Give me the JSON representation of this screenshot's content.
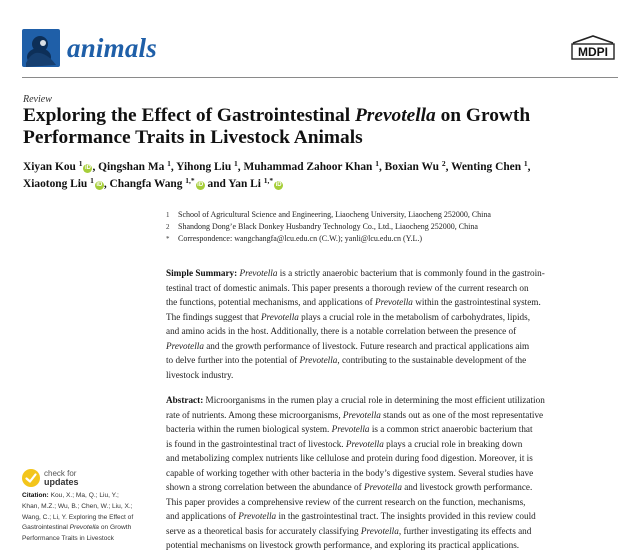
{
  "journal": {
    "name": "animals",
    "publisher": "MDPI",
    "brand_color": "#1f5fa8"
  },
  "article": {
    "type": "Review",
    "title_lines": [
      [
        "Exploring the Effect of Gastrointestinal ",
        "Prevotella",
        " on Growth"
      ],
      [
        "Performance Traits in Livestock Animals"
      ]
    ]
  },
  "authors": {
    "line1": {
      "a1": "Xiyan Kou ",
      "s1": "1",
      "a2": ", Qingshan Ma ",
      "s2": "1",
      "a3": ", Yihong Liu ",
      "s3": "1",
      "a4": ", Muhammad Zahoor Khan ",
      "s4": "1",
      "a5": ", Boxian Wu ",
      "s5": "2",
      "a6": ", Wenting Chen ",
      "s6": "1",
      "a7": ","
    },
    "line2": {
      "a1": "Xiaotong Liu ",
      "s1": "1",
      "a2": ", Changfa Wang ",
      "s2": "1,*",
      "a3": " and Yan Li ",
      "s3": "1,*"
    }
  },
  "affiliations": [
    {
      "mark": "1",
      "text": "School of Agricultural Science and Engineering, Liaocheng University, Liaocheng 252000, China"
    },
    {
      "mark": "2",
      "text": "Shandong Dong’e Black Donkey Husbandry Technology Co., Ltd., Liaocheng 252000, China"
    },
    {
      "mark": "*",
      "text": "Correspondence: wangchangfa@lcu.edu.cn (C.W.); yanli@lcu.edu.cn (Y.L.)"
    }
  ],
  "simple_summary": {
    "label": "Simple Summary:",
    "l1": {
      "a": "Prevotella",
      "b": " is a strictly anaerobic bacterium that is commonly found in the gastroin-"
    },
    "l2": "testinal tract of domestic animals. This paper presents a thorough review of the current research on",
    "l3": {
      "a": "the functions, potential mechanisms, and applications of ",
      "b": "Prevotella",
      "c": " within the gastrointestinal system."
    },
    "l4": {
      "a": "The findings suggest that ",
      "b": "Prevotella",
      "c": " plays a crucial role in the metabolism of carbohydrates, lipids,"
    },
    "l5": "and amino acids in the host.  Additionally, there is a notable correlation between the presence of",
    "l6": {
      "a": "Prevotella",
      "b": " and the growth performance of livestock. Future research and practical applications aim"
    },
    "l7": {
      "a": "to delve further into the potential of ",
      "b": "Prevotella",
      "c": ", contributing to the sustainable development of the"
    },
    "l8": "livestock industry."
  },
  "abstract": {
    "label": "Abstract:",
    "l1": " Microorganisms in the rumen play a crucial role in determining the most efficient utilization",
    "l2": {
      "a": "rate of nutrients.  Among these microorganisms, ",
      "b": "Prevotella",
      "c": " stands out as one of the most representative"
    },
    "l3": {
      "a": "bacteria within the rumen biological system. ",
      "b": "Prevotella",
      "c": " is a common strict anaerobic bacterium that"
    },
    "l4": {
      "a": "is found in the gastrointestinal tract of livestock.  ",
      "b": "Prevotella",
      "c": " plays a crucial role in breaking down"
    },
    "l5": "and metabolizing complex nutrients like cellulose and protein during food digestion. Moreover, it is",
    "l6": "capable of working together with other bacteria in the body’s digestive system. Several studies have",
    "l7": {
      "a": "shown a strong correlation between the abundance of ",
      "b": "Prevotella",
      "c": " and livestock growth performance."
    },
    "l8": "This paper provides a comprehensive review of the current research on the function, mechanisms,",
    "l9": {
      "a": "and applications of ",
      "b": "Prevotella",
      "c": " in the gastrointestinal tract. The insights provided in this review could"
    },
    "l10": {
      "a": "serve as a theoretical basis for accurately classifying ",
      "b": "Prevotella",
      "c": ", further investigating its effects and"
    },
    "l11": "potential mechanisms on livestock growth performance, and exploring its practical applications."
  },
  "check_updates": {
    "line1": "check for",
    "line2": "updates"
  },
  "citation": {
    "label": "Citation:",
    "l1": " Kou, X.; Ma, Q.; Liu, Y.;",
    "l2": "Khan, M.Z.; Wu, B.; Chen, W.; Liu, X.;",
    "l3": "Wang, C.; Li, Y. Exploring the Effect of",
    "l4": {
      "a": "Gastrointestinal ",
      "b": "Prevotella",
      "c": " on Growth"
    },
    "l5": "Performance Traits in Livestock"
  },
  "colors": {
    "orcid": "#a6ce39",
    "check_yellow": "#f3c51b"
  }
}
